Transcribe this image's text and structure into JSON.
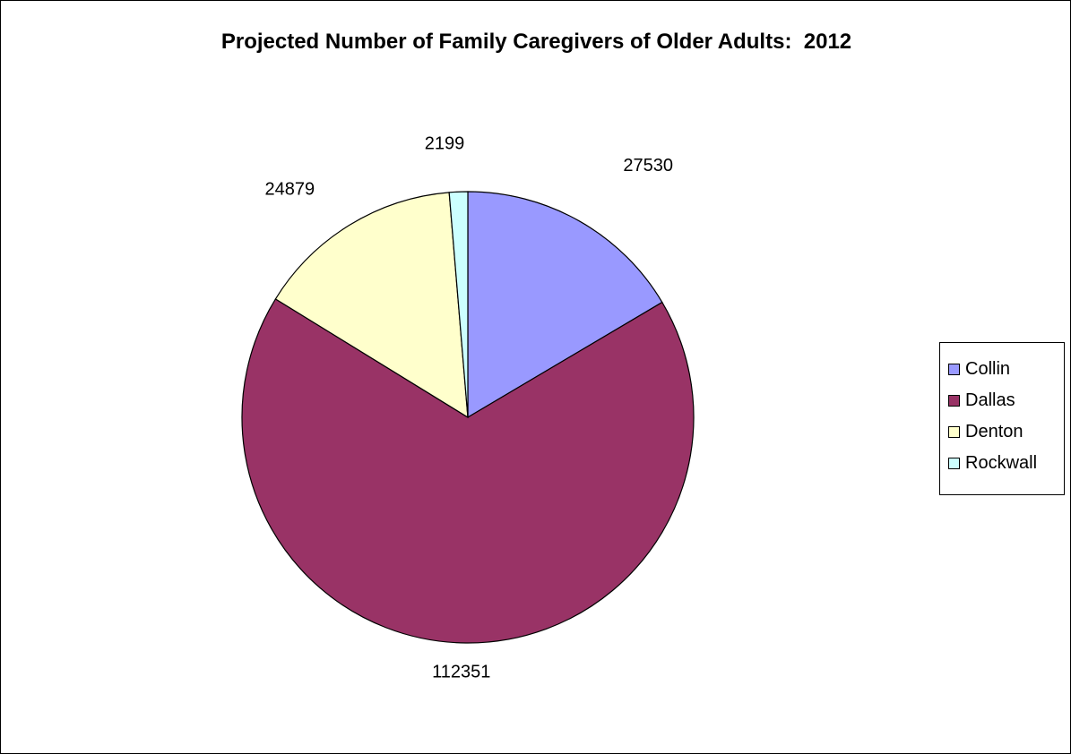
{
  "chart_data": {
    "type": "pie",
    "title": "Projected Number of Family Caregivers of Older Adults:  2012",
    "categories": [
      "Collin",
      "Dallas",
      "Denton",
      "Rockwall"
    ],
    "values": [
      27530,
      112351,
      24879,
      2199
    ],
    "colors": [
      "#9999FF",
      "#993366",
      "#FFFFCC",
      "#CCFFFF"
    ],
    "data_labels": [
      "27530",
      "112351",
      "24879",
      "2199"
    ],
    "legend": {
      "placement": "right",
      "entries": [
        "Collin",
        "Dallas",
        "Denton",
        "Rockwall"
      ]
    },
    "start_angle": "12 o'clock",
    "direction": "clockwise"
  }
}
